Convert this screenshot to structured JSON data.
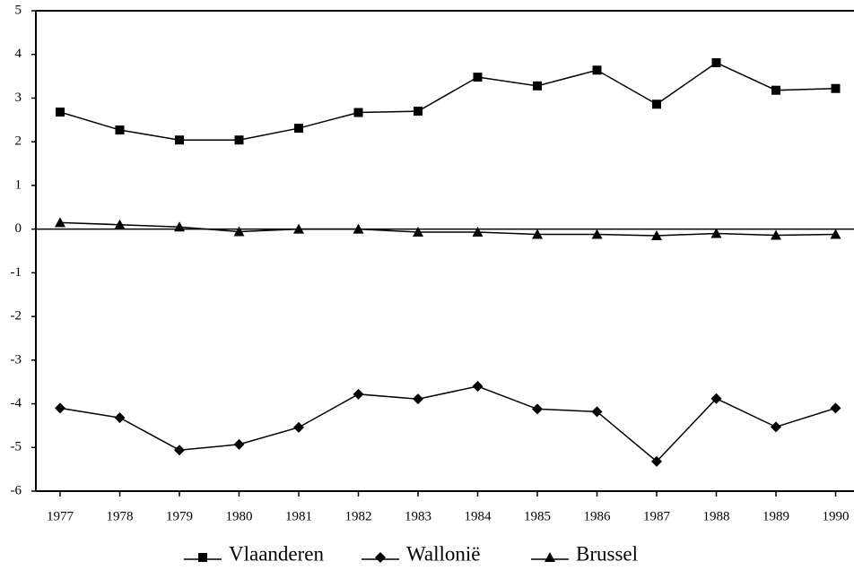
{
  "chart_data": {
    "type": "line",
    "categories": [
      "1977",
      "1978",
      "1979",
      "1980",
      "1981",
      "1982",
      "1983",
      "1984",
      "1985",
      "1986",
      "1987",
      "1988",
      "1989",
      "1990"
    ],
    "series": [
      {
        "name": "Vlaanderen",
        "color": "#000000",
        "marker": "square",
        "values": [
          2.68,
          2.27,
          2.04,
          2.04,
          2.31,
          2.67,
          2.7,
          3.48,
          3.28,
          3.64,
          2.86,
          3.81,
          3.18,
          3.22
        ]
      },
      {
        "name": "Wallonië",
        "color": "#000000",
        "marker": "diamond",
        "values": [
          -4.1,
          -4.32,
          -5.06,
          -4.93,
          -4.54,
          -3.78,
          -3.89,
          -3.6,
          -4.12,
          -4.18,
          -5.32,
          -3.88,
          -4.53,
          -4.1
        ]
      },
      {
        "name": "Brussel",
        "color": "#000000",
        "marker": "triangle",
        "values": [
          0.15,
          0.1,
          0.05,
          -0.06,
          0.0,
          0.0,
          -0.07,
          -0.07,
          -0.12,
          -0.12,
          -0.15,
          -0.1,
          -0.14,
          -0.12
        ]
      }
    ],
    "ylim": [
      -6,
      5
    ],
    "yticks": [
      -6,
      -5,
      -4,
      -3,
      -2,
      -1,
      0,
      1,
      2,
      3,
      4,
      5
    ],
    "legend": "bottom"
  }
}
